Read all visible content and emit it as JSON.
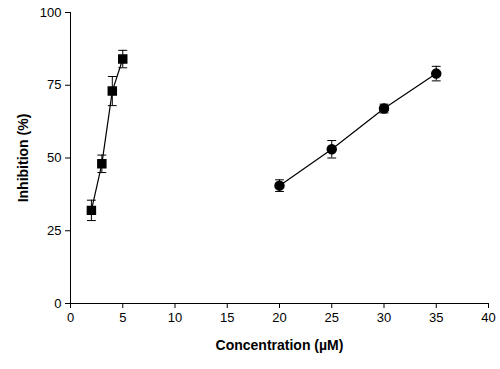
{
  "chart_data": {
    "type": "scatter",
    "xlabel": "Concentration (µM)",
    "ylabel": "Inhibition (%)",
    "xlim": [
      0,
      40
    ],
    "xticks": [
      0,
      5,
      10,
      15,
      20,
      25,
      30,
      35,
      40
    ],
    "ylim": [
      0,
      100
    ],
    "yticks": [
      0,
      25,
      50,
      75,
      100
    ],
    "grid": false,
    "series": [
      {
        "marker": "square",
        "color": "#000000",
        "line_style": "solid",
        "x": [
          2,
          3,
          4,
          5
        ],
        "values": [
          32,
          48,
          73,
          84
        ],
        "errors": [
          3.5,
          3,
          5,
          3
        ]
      },
      {
        "marker": "circle",
        "color": "#000000",
        "line_style": "solid",
        "x": [
          20,
          25,
          30,
          35
        ],
        "values": [
          40.5,
          53,
          67,
          79
        ],
        "errors": [
          2,
          3,
          1.5,
          2.5
        ]
      }
    ]
  }
}
